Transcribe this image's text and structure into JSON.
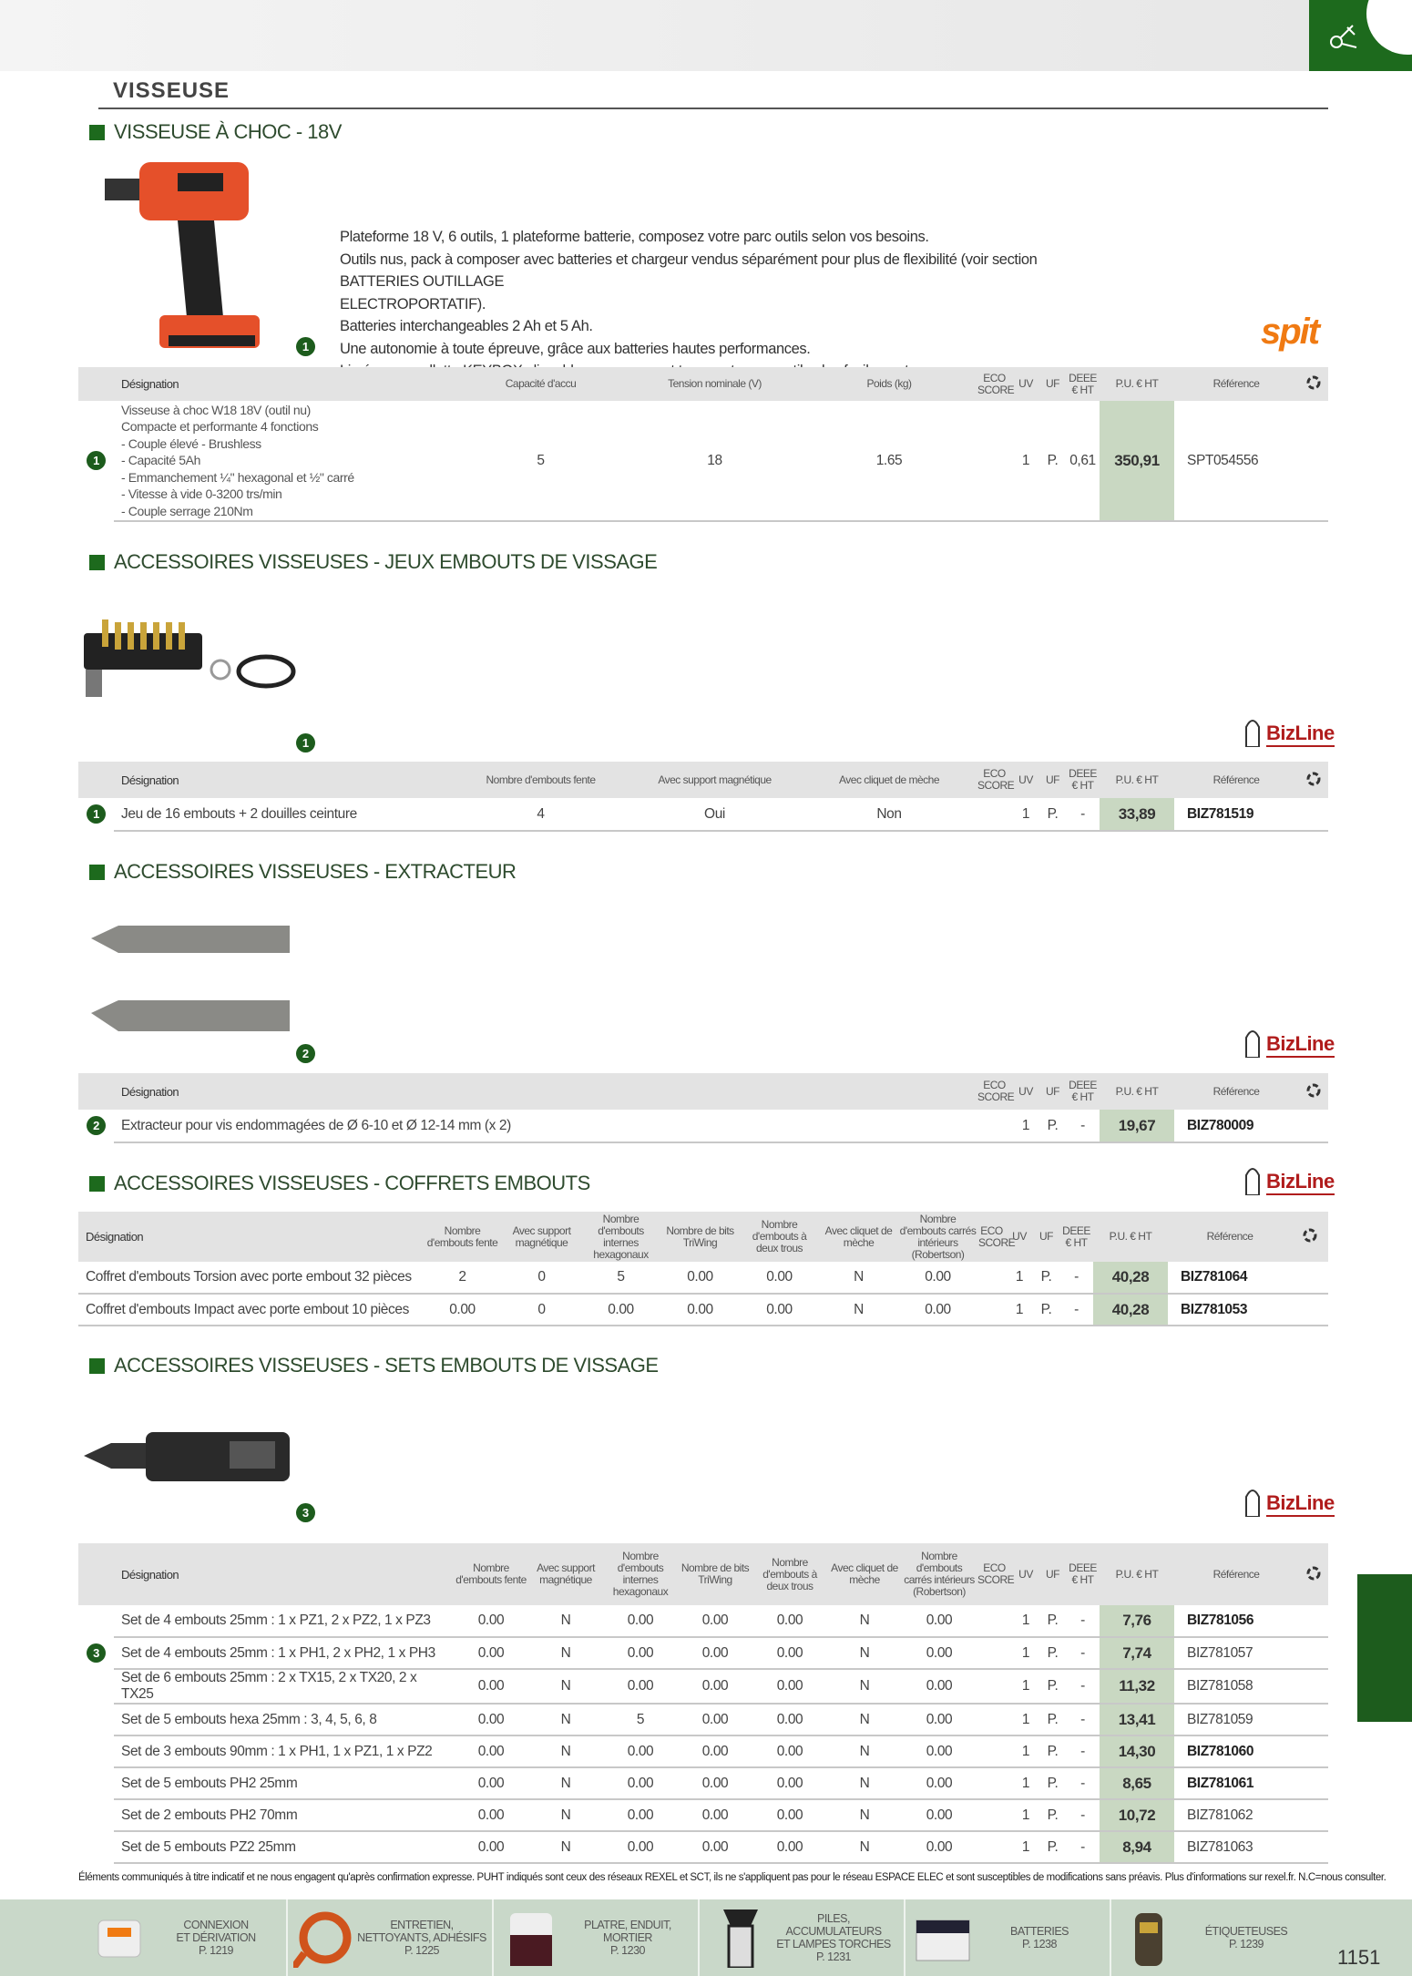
{
  "page_title": "VISSEUSE",
  "page_number": "1151",
  "accent_color": "#1d6a1d",
  "sections": [
    {
      "heading": "VISSEUSE À CHOC - 18V",
      "image_badge": "1",
      "brand_logo": "spit",
      "description": [
        "Plateforme 18 V, 6 outils, 1 plateforme batterie, composez votre parc outils selon vos besoins.",
        "Outils nus, pack à composer avec batteries et chargeur vendus séparément pour plus de flexibilité (voir section BATTERIES OUTILLAGE",
        "ELECTROPORTATIF).",
        "Batteries interchangeables 2 Ah et 5 Ah.",
        "Une autonomie à toute épreuve, grâce aux batteries hautes performances.",
        "Livrées en mallette KEYBOX clipsable pour ranger et transporter vos outils plus facilement."
      ],
      "table": {
        "columns": [
          "Désignation",
          "Capacité d'accu",
          "Tension nominale (V)",
          "Poids (kg)",
          "ECO SCORE",
          "UV",
          "UF",
          "DEEE € HT",
          "P.U. € HT",
          "Référence"
        ],
        "rows": [
          {
            "badge": "1",
            "designation": [
              "Visseuse à choc W18 18V (outil nu)",
              "Compacte et performante 4 fonctions",
              "- Couple élevé - Brushless",
              "- Capacité 5Ah",
              "- Emmanchement ¼\" hexagonal et ½\" carré",
              "- Vitesse à vide 0-3200 trs/min",
              "- Couple serrage 210Nm"
            ],
            "values": [
              "5",
              "18",
              "1.65"
            ],
            "eco": "",
            "uv": "1",
            "uf": "P.",
            "deee": "0,61",
            "pu": "350,91",
            "ref": "SPT054556",
            "ref_bold": false
          }
        ]
      }
    },
    {
      "heading": "ACCESSOIRES VISSEUSES - JEUX EMBOUTS DE VISSAGE",
      "image_badge": "1",
      "brand_logo": "BizLine",
      "table": {
        "columns": [
          "Désignation",
          "Nombre d'embouts fente",
          "Avec support magnétique",
          "Avec cliquet de mèche",
          "ECO SCORE",
          "UV",
          "UF",
          "DEEE € HT",
          "P.U. € HT",
          "Référence"
        ],
        "rows": [
          {
            "badge": "1",
            "designation": "Jeu de 16 embouts + 2 douilles ceinture",
            "values": [
              "4",
              "Oui",
              "Non"
            ],
            "eco": "",
            "uv": "1",
            "uf": "P.",
            "deee": "-",
            "pu": "33,89",
            "ref": "BIZ781519",
            "ref_bold": true
          }
        ]
      }
    },
    {
      "heading": "ACCESSOIRES VISSEUSES - EXTRACTEUR",
      "image_badge": "2",
      "brand_logo": "BizLine",
      "table": {
        "columns": [
          "Désignation",
          "ECO SCORE",
          "UV",
          "UF",
          "DEEE € HT",
          "P.U. € HT",
          "Référence"
        ],
        "rows": [
          {
            "badge": "2",
            "designation": "Extracteur pour vis endommagées de Ø 6-10 et Ø 12-14 mm (x 2)",
            "values": [],
            "eco": "",
            "uv": "1",
            "uf": "P.",
            "deee": "-",
            "pu": "19,67",
            "ref": "BIZ780009",
            "ref_bold": true
          }
        ]
      }
    },
    {
      "heading": "ACCESSOIRES VISSEUSES - COFFRETS EMBOUTS",
      "brand_logo": "BizLine",
      "table": {
        "columns": [
          "Désignation",
          "Nombre d'embouts fente",
          "Avec support magnétique",
          "Nombre d'embouts internes hexagonaux",
          "Nombre de bits TriWing",
          "Nombre d'embouts à deux trous",
          "Avec cliquet de mèche",
          "Nombre d'embouts carrés intérieurs (Robertson)",
          "ECO SCORE",
          "UV",
          "UF",
          "DEEE € HT",
          "P.U. € HT",
          "Référence"
        ],
        "rows": [
          {
            "designation": "Coffret d'embouts Torsion avec porte embout  32 pièces",
            "values": [
              "2",
              "0",
              "5",
              "0.00",
              "0.00",
              "N",
              "0.00"
            ],
            "eco": "",
            "uv": "1",
            "uf": "P.",
            "deee": "-",
            "pu": "40,28",
            "ref": "BIZ781064",
            "ref_bold": true
          },
          {
            "designation": "Coffret d'embouts Impact avec porte embout 10 pièces",
            "values": [
              "0.00",
              "0",
              "0.00",
              "0.00",
              "0.00",
              "N",
              "0.00"
            ],
            "eco": "",
            "uv": "1",
            "uf": "P.",
            "deee": "-",
            "pu": "40,28",
            "ref": "BIZ781053",
            "ref_bold": true
          }
        ]
      }
    },
    {
      "heading": "ACCESSOIRES VISSEUSES - SETS EMBOUTS DE VISSAGE",
      "image_badge": "3",
      "brand_logo": "BizLine",
      "table": {
        "columns": [
          "Désignation",
          "Nombre d'embouts fente",
          "Avec support magnétique",
          "Nombre d'embouts internes hexagonaux",
          "Nombre de bits TriWing",
          "Nombre d'embouts à deux trous",
          "Avec cliquet de mèche",
          "Nombre d'embouts carrés intérieurs (Robertson)",
          "ECO SCORE",
          "UV",
          "UF",
          "DEEE € HT",
          "P.U. € HT",
          "Référence"
        ],
        "rows": [
          {
            "designation": "Set de 4 embouts 25mm : 1 x PZ1,  2 x PZ2, 1 x PZ3",
            "values": [
              "0.00",
              "N",
              "0.00",
              "0.00",
              "0.00",
              "N",
              "0.00"
            ],
            "eco": "",
            "uv": "1",
            "uf": "P.",
            "deee": "-",
            "pu": "7,76",
            "ref": "BIZ781056",
            "ref_bold": true
          },
          {
            "badge": "3",
            "designation": "Set de 4 embouts 25mm : 1 x PH1,  2 x PH2, 1 x PH3",
            "values": [
              "0.00",
              "N",
              "0.00",
              "0.00",
              "0.00",
              "N",
              "0.00"
            ],
            "eco": "",
            "uv": "1",
            "uf": "P.",
            "deee": "-",
            "pu": "7,74",
            "ref": "BIZ781057",
            "ref_bold": false
          },
          {
            "designation": "Set de 6 embouts 25mm : 2 x TX15,  2 x TX20, 2 x TX25",
            "values": [
              "0.00",
              "N",
              "0.00",
              "0.00",
              "0.00",
              "N",
              "0.00"
            ],
            "eco": "",
            "uv": "1",
            "uf": "P.",
            "deee": "-",
            "pu": "11,32",
            "ref": "BIZ781058",
            "ref_bold": false
          },
          {
            "designation": "Set de 5 embouts hexa 25mm : 3, 4, 5, 6, 8",
            "values": [
              "0.00",
              "N",
              "5",
              "0.00",
              "0.00",
              "N",
              "0.00"
            ],
            "eco": "",
            "uv": "1",
            "uf": "P.",
            "deee": "-",
            "pu": "13,41",
            "ref": "BIZ781059",
            "ref_bold": false
          },
          {
            "designation": "Set de 3 embouts 90mm : 1 x PH1, 1 x PZ1, 1 x PZ2",
            "values": [
              "0.00",
              "N",
              "0.00",
              "0.00",
              "0.00",
              "N",
              "0.00"
            ],
            "eco": "",
            "uv": "1",
            "uf": "P.",
            "deee": "-",
            "pu": "14,30",
            "ref": "BIZ781060",
            "ref_bold": true
          },
          {
            "designation": "Set de 5 embouts PH2  25mm",
            "values": [
              "0.00",
              "N",
              "0.00",
              "0.00",
              "0.00",
              "N",
              "0.00"
            ],
            "eco": "",
            "uv": "1",
            "uf": "P.",
            "deee": "-",
            "pu": "8,65",
            "ref": "BIZ781061",
            "ref_bold": true
          },
          {
            "designation": "Set de 2 embouts PH2 70mm",
            "values": [
              "0.00",
              "N",
              "0.00",
              "0.00",
              "0.00",
              "N",
              "0.00"
            ],
            "eco": "",
            "uv": "1",
            "uf": "P.",
            "deee": "-",
            "pu": "10,72",
            "ref": "BIZ781062",
            "ref_bold": false
          },
          {
            "designation": "Set de 5 embouts PZ2 25mm",
            "values": [
              "0.00",
              "N",
              "0.00",
              "0.00",
              "0.00",
              "N",
              "0.00"
            ],
            "eco": "",
            "uv": "1",
            "uf": "P.",
            "deee": "-",
            "pu": "8,94",
            "ref": "BIZ781063",
            "ref_bold": false
          }
        ]
      }
    }
  ],
  "disclaimer": "Éléments communiqués à titre indicatif et ne nous engagent qu'après confirmation expresse. PUHT indiqués sont ceux des réseaux REXEL et SCT, ils ne s'appliquent pas pour le réseau ESPACE ELEC et sont susceptibles de modifications sans préavis. Plus d'informations sur rexel.fr. N.C=nous consulter.",
  "footer": [
    {
      "label": "CONNEXION\nET DÉRIVATION",
      "page": "P. 1219",
      "icon": "connector-icon"
    },
    {
      "label": "ENTRETIEN,\nNETTOYANTS, ADHÉSIFS",
      "page": "P. 1225",
      "icon": "tape-icon"
    },
    {
      "label": "PLATRE, ENDUIT,\nMORTIER",
      "page": "P. 1230",
      "icon": "plaster-bucket-icon"
    },
    {
      "label": "PILES, ACCUMULATEURS\nET LAMPES TORCHES",
      "page": "P. 1231",
      "icon": "flashlight-icon"
    },
    {
      "label": "BATTERIES",
      "page": "P. 1238",
      "icon": "battery-icon"
    },
    {
      "label": "ÉTIQUETEUSES",
      "page": "P. 1239",
      "icon": "label-printer-icon"
    }
  ]
}
